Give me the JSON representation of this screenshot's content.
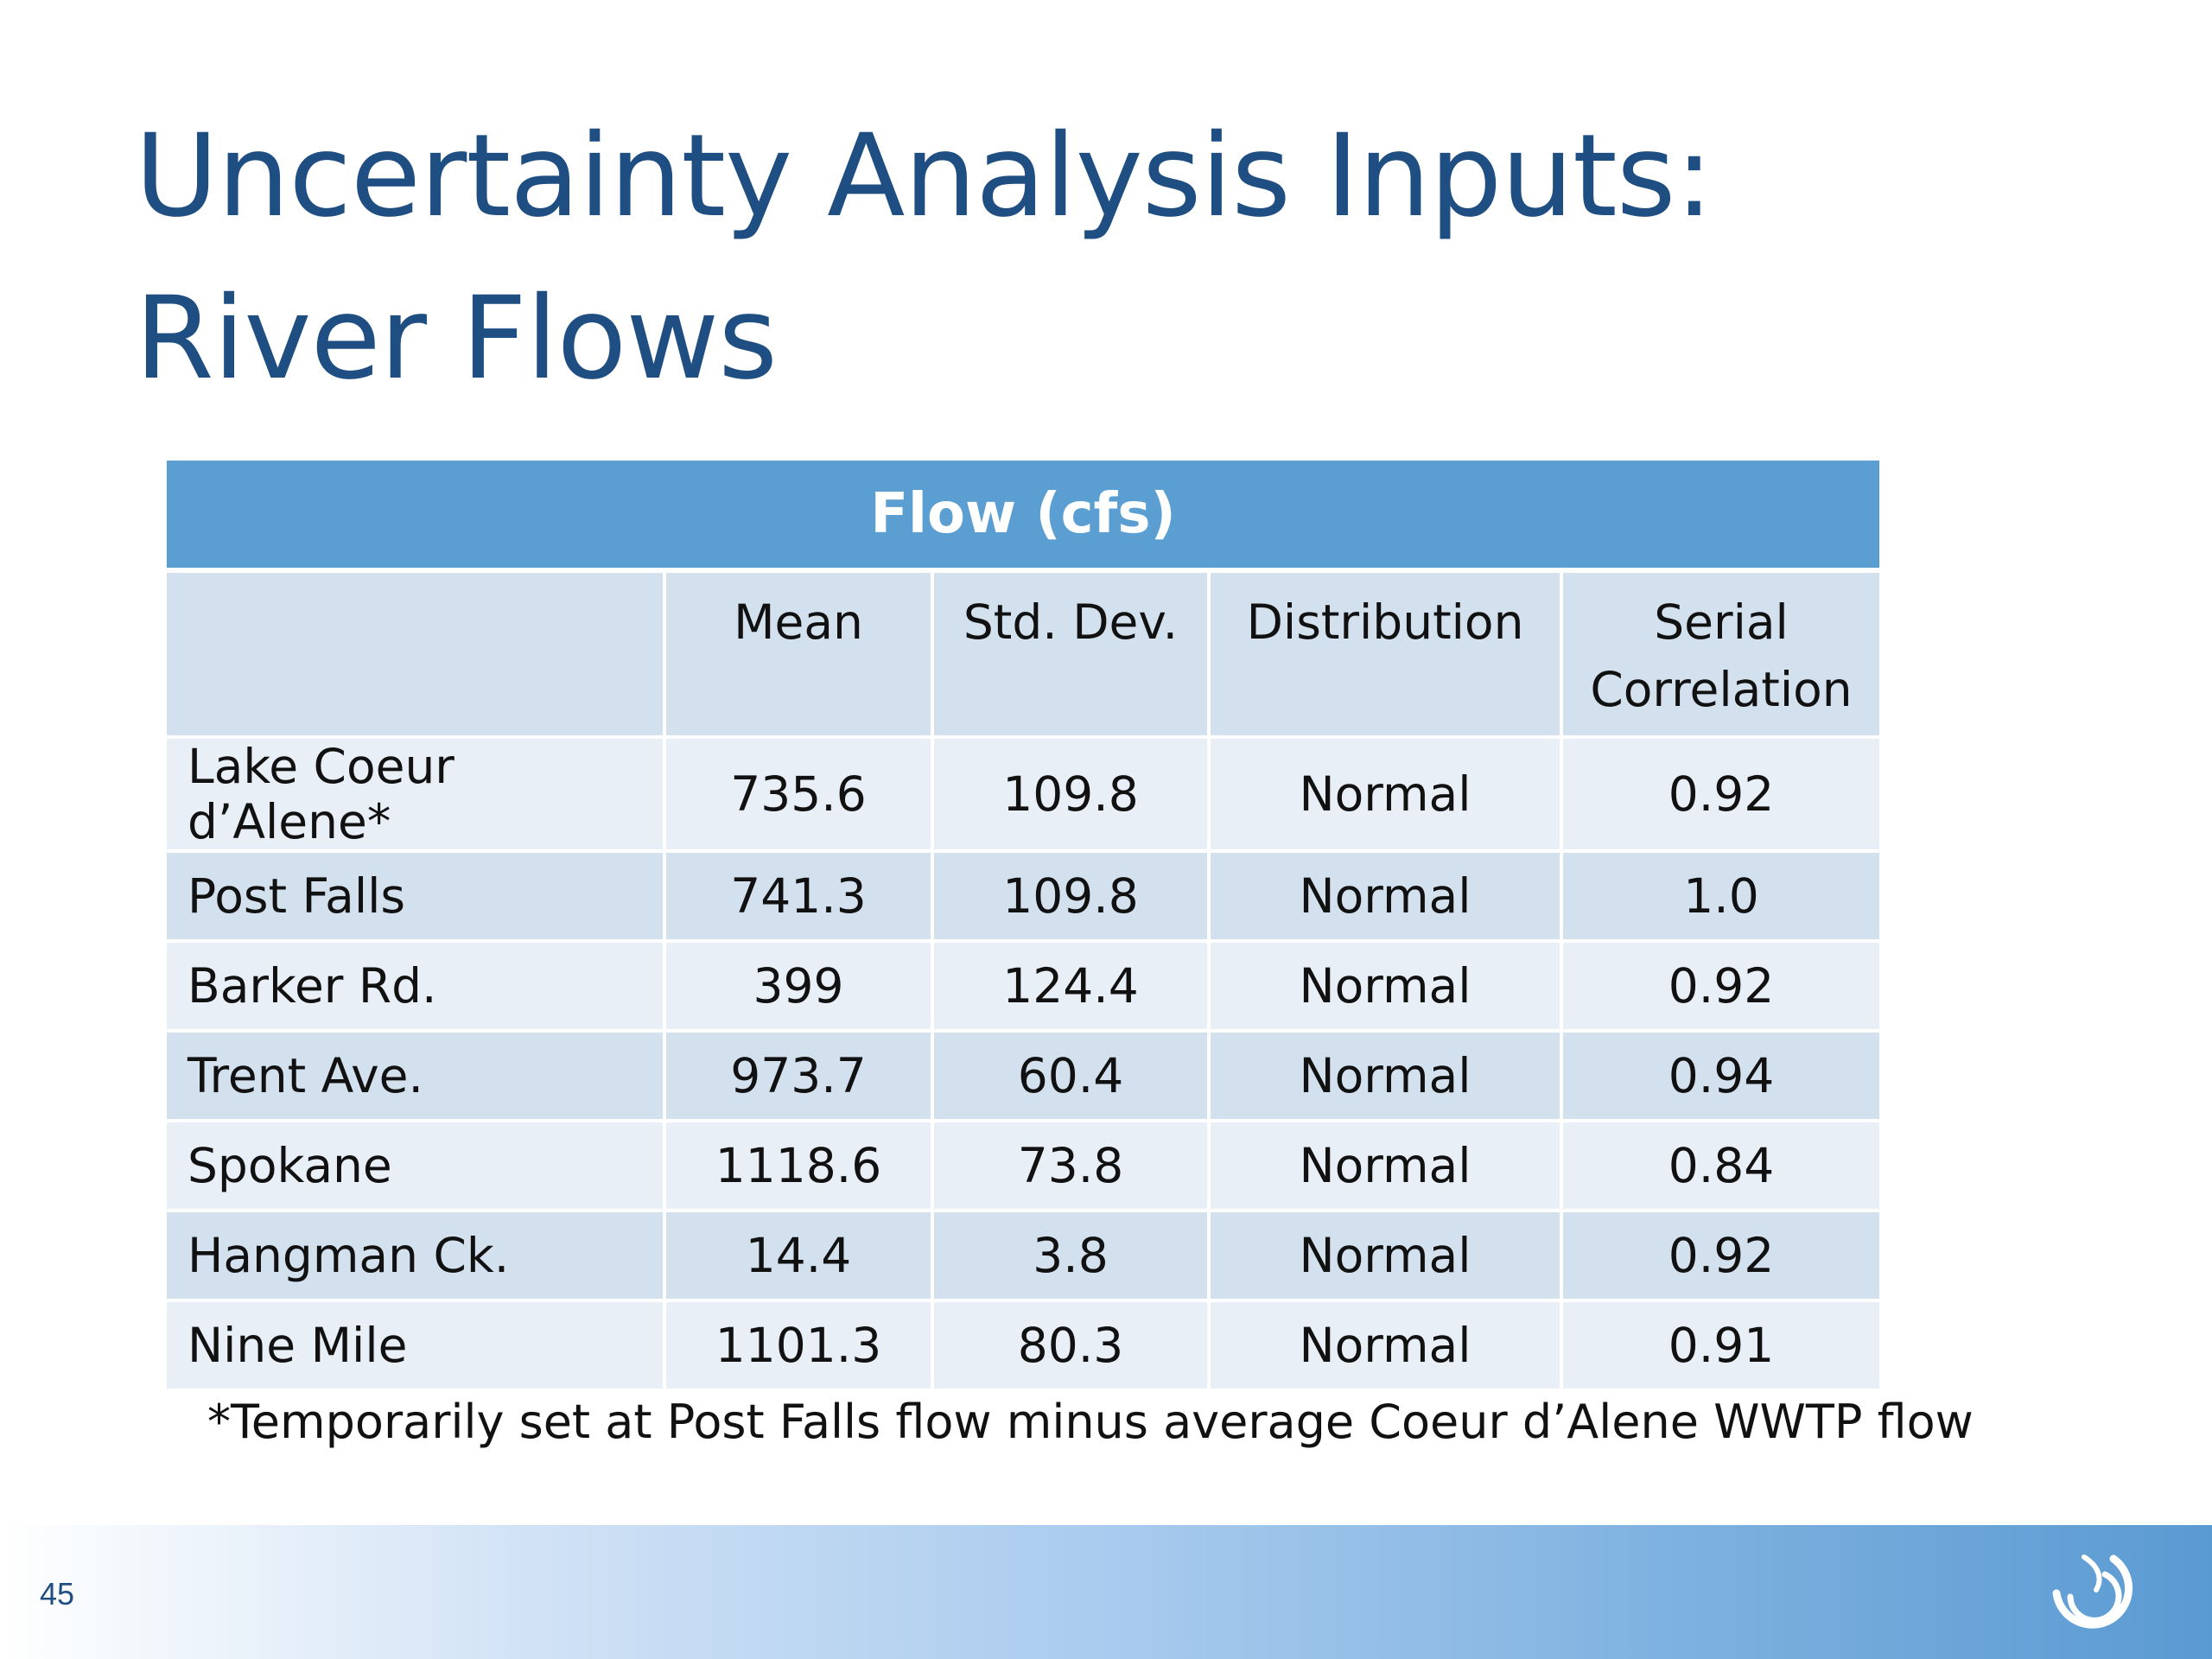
{
  "slide": {
    "title_line1": "Uncertainty Analysis Inputs:",
    "title_line2": "River Flows",
    "page_number": "45",
    "footnote": "*Temporarily set at Post Falls flow minus average Coeur d’Alene WWTP flow"
  },
  "table": {
    "group_header": "Flow (cfs)",
    "columns": [
      "",
      "Mean",
      "Std. Dev.",
      "Distribution",
      "Serial Correlation"
    ],
    "column_header_lines": {
      "serial_line1": "Serial",
      "serial_line2": "Correlation"
    },
    "rows": [
      [
        "Lake Coeur d’Alene*",
        "735.6",
        "109.8",
        "Normal",
        "0.92"
      ],
      [
        "Post Falls",
        "741.3",
        "109.8",
        "Normal",
        "1.0"
      ],
      [
        "Barker Rd.",
        "399",
        "124.4",
        "Normal",
        "0.92"
      ],
      [
        "Trent Ave.",
        "973.7",
        "60.4",
        "Normal",
        "0.94"
      ],
      [
        "Spokane",
        "1118.6",
        "73.8",
        "Normal",
        "0.84"
      ],
      [
        "Hangman Ck.",
        "14.4",
        "3.8",
        "Normal",
        "0.92"
      ],
      [
        "Nine Mile",
        "1101.3",
        "80.3",
        "Normal",
        "0.91"
      ]
    ]
  },
  "colors": {
    "title": "#1f4e82",
    "header_blue": "#5b9fd2",
    "row_light": "#e9eff7",
    "row_dark": "#d3e1ee"
  },
  "icons": {
    "logo": "swirl-logo-icon"
  }
}
